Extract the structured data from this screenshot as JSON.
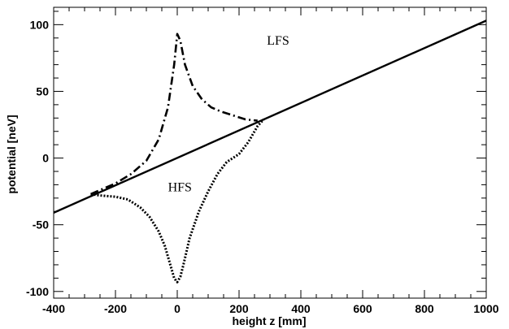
{
  "chart_data": {
    "type": "line",
    "title": "",
    "xlabel": "height z [mm]",
    "ylabel": "potential [neV]",
    "xlim": [
      -400,
      1000
    ],
    "ylim": [
      -105,
      113
    ],
    "grid": false,
    "legend": "none",
    "x_ticks": [
      -400,
      -200,
      0,
      200,
      400,
      600,
      800,
      1000
    ],
    "y_ticks": [
      -100,
      -50,
      0,
      50,
      100
    ],
    "annotations": [
      {
        "text": "LFS",
        "x": 290,
        "y": 85
      },
      {
        "text": "HFS",
        "x": -30,
        "y": -25
      }
    ],
    "series": [
      {
        "style": "solid",
        "x": [
          -400,
          1000
        ],
        "y": [
          -41,
          103
        ]
      },
      {
        "style": "dashdot",
        "x": [
          -280,
          -200,
          -150,
          -100,
          -60,
          -30,
          -10,
          0,
          10,
          25,
          50,
          80,
          110,
          140,
          180,
          220,
          260
        ],
        "y": [
          -27,
          -19,
          -12,
          -2,
          14,
          38,
          70,
          93,
          88,
          70,
          54,
          44,
          38,
          35,
          32,
          29,
          28
        ]
      },
      {
        "style": "dotted",
        "x": [
          -280,
          -250,
          -200,
          -160,
          -120,
          -90,
          -60,
          -40,
          -20,
          -10,
          0,
          10,
          20,
          40,
          70,
          100,
          130,
          160,
          200,
          230,
          260,
          280
        ],
        "y": [
          -27,
          -28,
          -29,
          -31,
          -37,
          -44,
          -55,
          -66,
          -82,
          -90,
          -93,
          -89,
          -80,
          -60,
          -40,
          -25,
          -12,
          -3,
          3,
          12,
          24,
          29
        ]
      }
    ]
  }
}
